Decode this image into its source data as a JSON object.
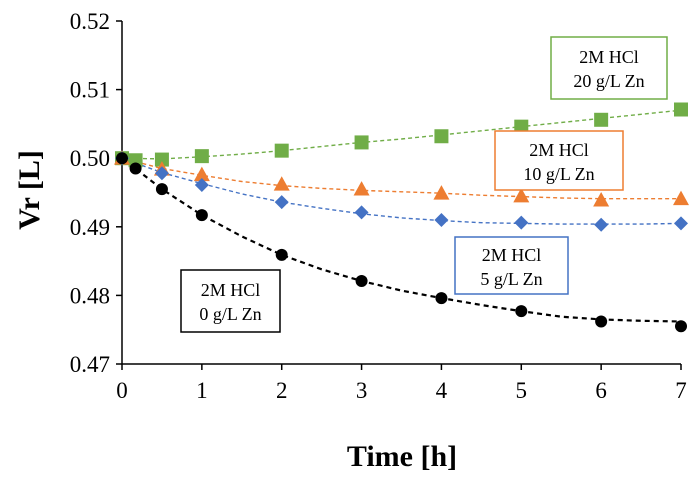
{
  "chart_data": {
    "type": "scatter",
    "title": "",
    "xlabel": "Time [h]",
    "ylabel": "Vr [L]",
    "xlim": [
      0,
      7
    ],
    "ylim": [
      0.47,
      0.52
    ],
    "xticks": [
      0,
      1,
      2,
      3,
      4,
      5,
      6,
      7
    ],
    "yticks": [
      0.47,
      0.48,
      0.49,
      0.5,
      0.51,
      0.52
    ],
    "ytick_labels": [
      "0.47",
      "0.48",
      "0.49",
      "0.50",
      "0.51",
      "0.52"
    ],
    "grid": false,
    "series": [
      {
        "name": "2M HCl 0 g/L Zn",
        "label_lines": [
          "2M HCl",
          "0 g/L Zn"
        ],
        "marker": "circle",
        "color": "#000000",
        "box_color": "#000000",
        "x": [
          0,
          0.17,
          0.5,
          1,
          2,
          3,
          4,
          5,
          6,
          7
        ],
        "y": [
          0.5,
          0.4985,
          0.4955,
          0.4917,
          0.4859,
          0.4821,
          0.4796,
          0.4777,
          0.4762,
          0.4755
        ],
        "trend_x": [
          0,
          0.5,
          1,
          1.5,
          2,
          2.5,
          3,
          3.5,
          4,
          4.5,
          5,
          5.5,
          6,
          6.5,
          7
        ],
        "trend_y": [
          0.5,
          0.4955,
          0.4917,
          0.4886,
          0.4859,
          0.4838,
          0.4821,
          0.4807,
          0.4796,
          0.4786,
          0.4777,
          0.4769,
          0.4765,
          0.4763,
          0.4762
        ]
      },
      {
        "name": "2M HCl 5 g/L Zn",
        "label_lines": [
          "2M HCl",
          "5 g/L Zn"
        ],
        "marker": "diamond",
        "color": "#4472C4",
        "box_color": "#4472C4",
        "x": [
          0,
          0.5,
          1,
          2,
          3,
          4,
          5,
          6,
          7
        ],
        "y": [
          0.5,
          0.4978,
          0.4961,
          0.4936,
          0.4921,
          0.491,
          0.4906,
          0.4903,
          0.4905
        ],
        "trend_x": [
          0,
          0.5,
          1,
          1.5,
          2,
          2.5,
          3,
          3.5,
          4,
          4.5,
          5,
          5.5,
          6,
          6.5,
          7
        ],
        "trend_y": [
          0.5,
          0.4979,
          0.4963,
          0.4948,
          0.4936,
          0.4927,
          0.4919,
          0.4913,
          0.4909,
          0.4906,
          0.4905,
          0.4904,
          0.4904,
          0.4904,
          0.4905
        ]
      },
      {
        "name": "2M HCl 10 g/L Zn",
        "label_lines": [
          "2M HCl",
          "10 g/L Zn"
        ],
        "marker": "triangle",
        "color": "#ED7D31",
        "box_color": "#ED7D31",
        "x": [
          0,
          0.5,
          1,
          2,
          3,
          4,
          5,
          6,
          7
        ],
        "y": [
          0.5,
          0.4984,
          0.4976,
          0.4962,
          0.4955,
          0.4949,
          0.4945,
          0.4939,
          0.4941
        ],
        "trend_x": [
          0,
          0.5,
          1,
          1.5,
          2,
          2.5,
          3,
          3.5,
          4,
          4.5,
          5,
          5.5,
          6,
          6.5,
          7
        ],
        "trend_y": [
          0.5,
          0.4985,
          0.4975,
          0.4966,
          0.496,
          0.4956,
          0.4953,
          0.4951,
          0.4949,
          0.4946,
          0.4944,
          0.4942,
          0.4941,
          0.4941,
          0.4941
        ]
      },
      {
        "name": "2M HCl 20 g/L Zn",
        "label_lines": [
          "2M HCl",
          "20 g/L Zn"
        ],
        "marker": "square",
        "color": "#70AD47",
        "box_color": "#70AD47",
        "x": [
          0,
          0.17,
          0.5,
          1,
          2,
          3,
          4,
          5,
          6,
          7
        ],
        "y": [
          0.5,
          0.4997,
          0.4998,
          0.5003,
          0.5011,
          0.5023,
          0.5032,
          0.5046,
          0.5056,
          0.5071
        ],
        "trend_x": [
          0,
          0.5,
          1,
          1.5,
          2,
          2.5,
          3,
          3.5,
          4,
          4.5,
          5,
          5.5,
          6,
          6.5,
          7
        ],
        "trend_y": [
          0.5,
          0.4999,
          0.5002,
          0.5006,
          0.5011,
          0.5017,
          0.5023,
          0.5028,
          0.5034,
          0.504,
          0.5046,
          0.5052,
          0.5058,
          0.5064,
          0.507
        ]
      }
    ]
  }
}
